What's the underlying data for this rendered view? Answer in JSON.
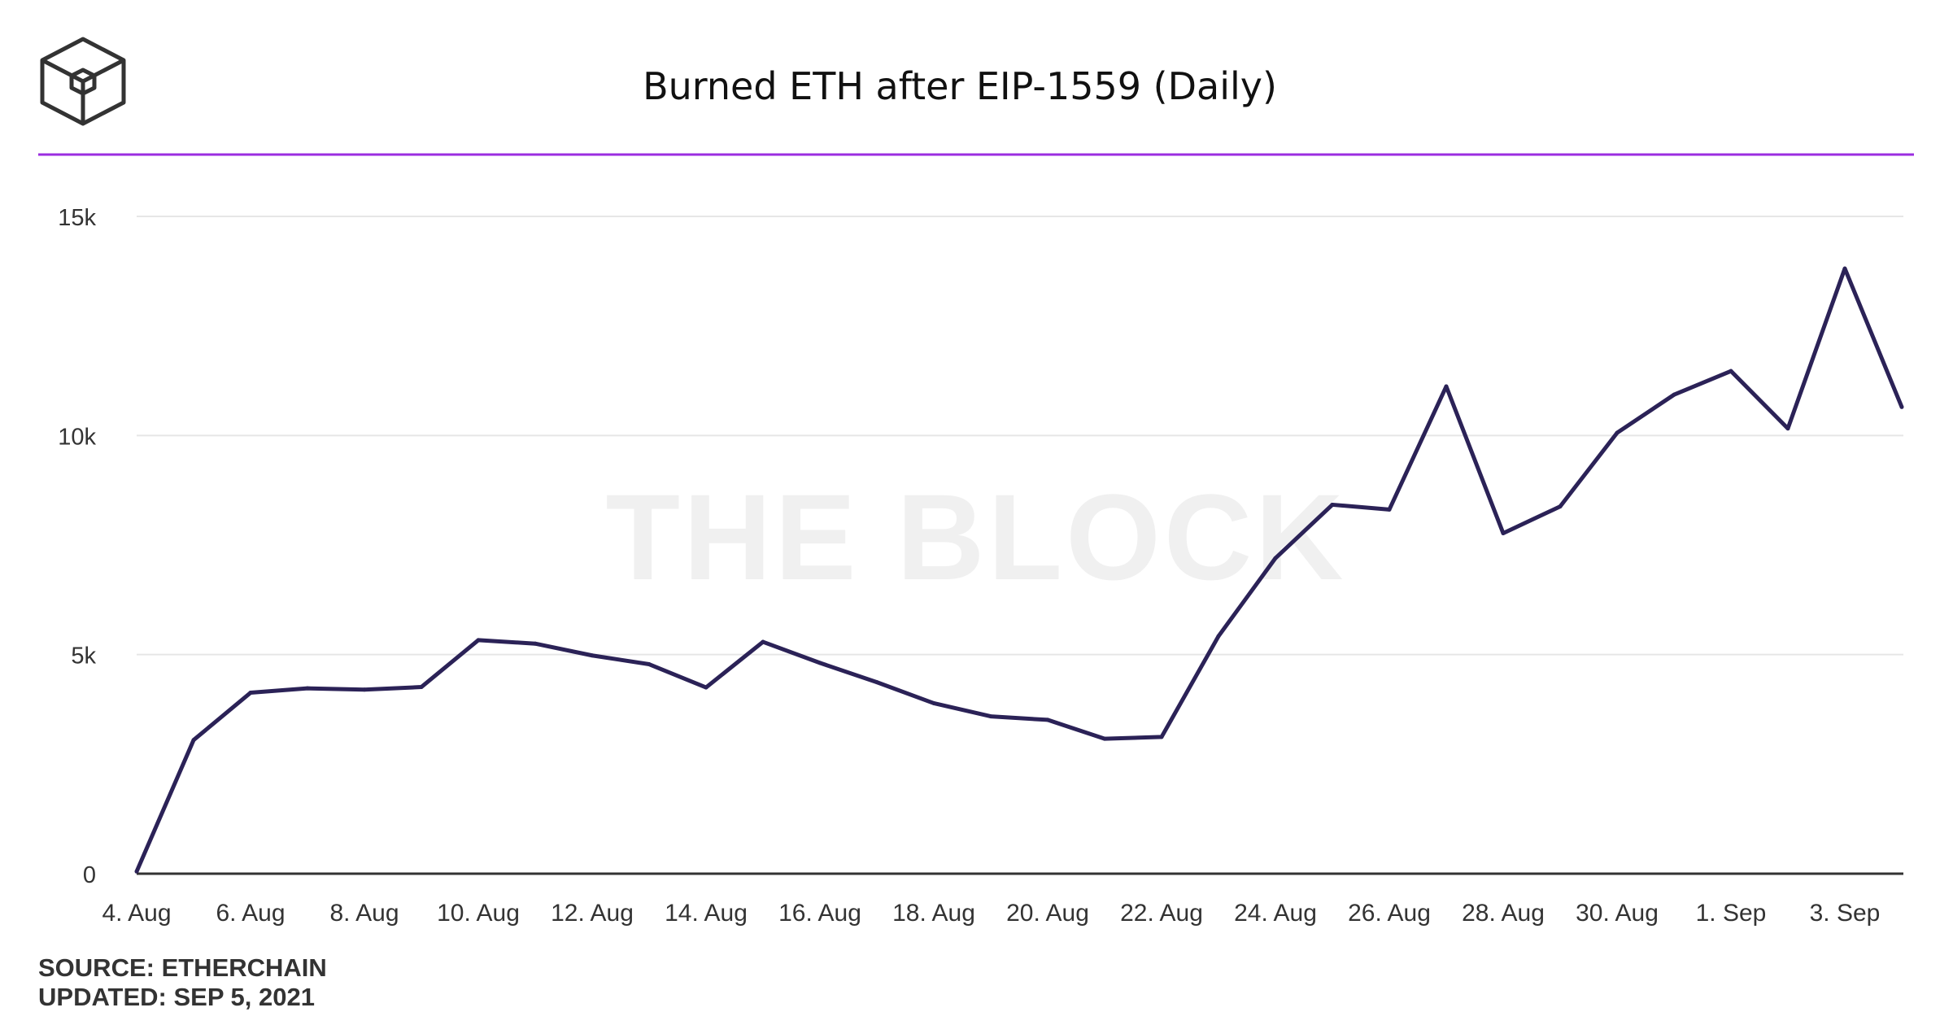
{
  "header": {
    "logo": "the-block-cube-logo",
    "title": "Burned ETH after EIP-1559 (Daily)",
    "accent_color": "#9b2de0"
  },
  "watermark": "THE BLOCK",
  "footer": {
    "source": "SOURCE: ETHERCHAIN",
    "updated": "UPDATED: SEP 5, 2021"
  },
  "chart_data": {
    "type": "line",
    "title": "Burned ETH after EIP-1559 (Daily)",
    "xlabel": "",
    "ylabel": "",
    "ylim": [
      0,
      15000
    ],
    "yticks": [
      0,
      5000,
      10000,
      15000
    ],
    "ytick_labels": [
      "0",
      "5k",
      "10k",
      "15k"
    ],
    "xtick_labels": [
      "4. Aug",
      "6. Aug",
      "8. Aug",
      "10. Aug",
      "12. Aug",
      "14. Aug",
      "16. Aug",
      "18. Aug",
      "20. Aug",
      "22. Aug",
      "24. Aug",
      "26. Aug",
      "28. Aug",
      "30. Aug",
      "1. Sep",
      "3. Sep"
    ],
    "grid": true,
    "line_color": "#2b2257",
    "series": [
      {
        "x": [
          "4. Aug",
          "5. Aug",
          "6. Aug",
          "7. Aug",
          "8. Aug",
          "9. Aug",
          "10. Aug",
          "11. Aug",
          "12. Aug",
          "13. Aug",
          "14. Aug",
          "15. Aug",
          "16. Aug",
          "17. Aug",
          "18. Aug",
          "19. Aug",
          "20. Aug",
          "21. Aug",
          "22. Aug",
          "23. Aug",
          "24. Aug",
          "25. Aug",
          "26. Aug",
          "27. Aug",
          "28. Aug",
          "29. Aug",
          "30. Aug",
          "31. Aug",
          "1. Sep",
          "2. Sep",
          "3. Sep",
          "4. Sep"
        ],
        "values": [
          50,
          3050,
          4130,
          4230,
          4200,
          4260,
          5330,
          5250,
          4980,
          4780,
          4250,
          5290,
          4810,
          4370,
          3890,
          3590,
          3510,
          3080,
          3120,
          5420,
          7200,
          8420,
          8310,
          11120,
          7770,
          8380,
          10060,
          10930,
          11470,
          10160,
          13810,
          10650
        ]
      }
    ]
  }
}
